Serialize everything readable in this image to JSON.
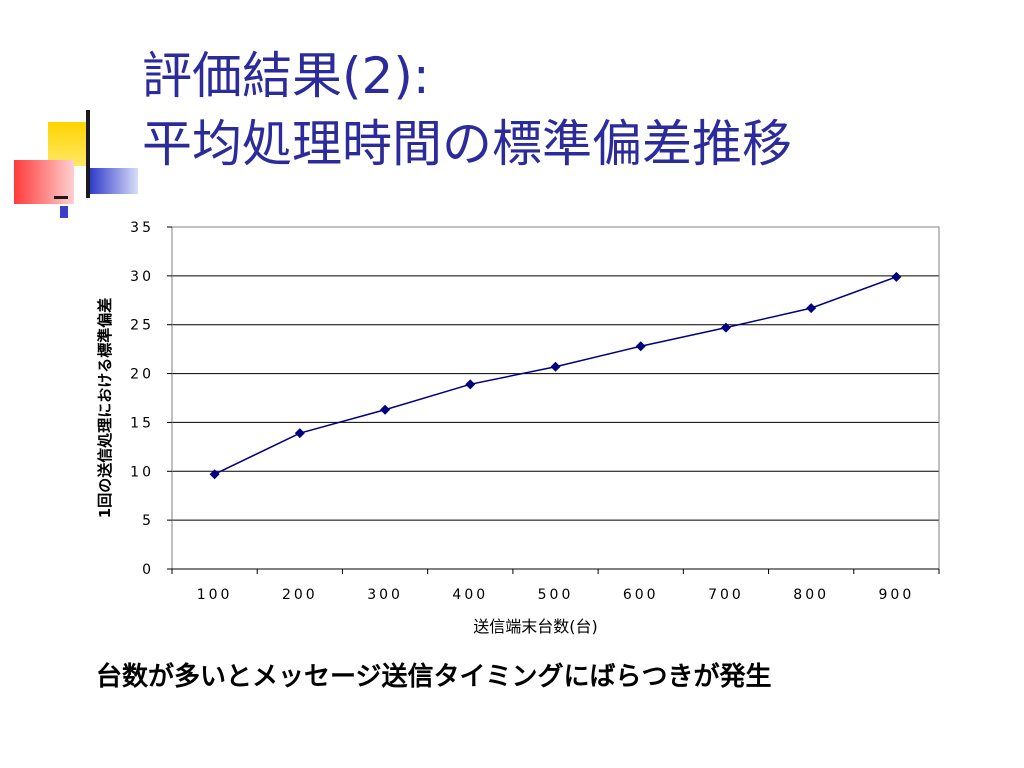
{
  "slide": {
    "title_line1": "評価結果(2):",
    "title_line2": "平均処理時間の標準偏差推移",
    "caption": "台数が多いとメッセージ送信タイミングにばらつきが発生"
  },
  "colors": {
    "title": "#2b2b9c",
    "series": "#000080",
    "deco_yellow": "#ffd400",
    "deco_blue": "#2a35c8",
    "deco_red": "#ff3b3b"
  },
  "chart_data": {
    "type": "line",
    "x": [
      100,
      200,
      300,
      400,
      500,
      600,
      700,
      800,
      900
    ],
    "series": [
      {
        "values": [
          9.7,
          13.9,
          16.3,
          18.9,
          20.7,
          22.8,
          24.7,
          26.7,
          29.9
        ]
      }
    ],
    "xlabel": "送信端末台数(台)",
    "ylabel": "1回の送信処理における標準偏差",
    "ylim": [
      0,
      35
    ],
    "yticks": [
      0,
      5,
      10,
      15,
      20,
      25,
      30,
      35
    ],
    "xtick_labels": [
      "100",
      "200",
      "300",
      "400",
      "500",
      "600",
      "700",
      "800",
      "900"
    ],
    "grid": "horizontal",
    "legend": "none",
    "marker": "diamond"
  }
}
